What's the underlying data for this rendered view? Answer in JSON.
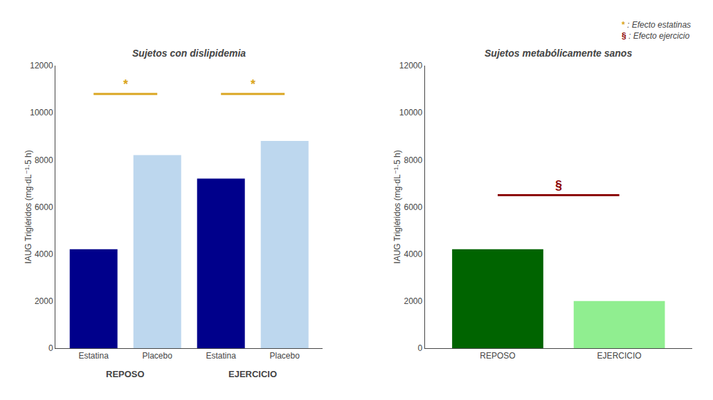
{
  "chart_data": [
    {
      "type": "bar",
      "title": "Sujetos con dislipidemia",
      "categories": [
        "Estatina",
        "Placebo",
        "Estatina",
        "Placebo"
      ],
      "groups": [
        "REPOSO",
        "REPOSO",
        "EJERCICIO",
        "EJERCICIO"
      ],
      "values": [
        4200,
        8200,
        7200,
        8800
      ],
      "colors": [
        "#00008B",
        "#BDD7EE",
        "#00008B",
        "#BDD7EE"
      ],
      "ylabel": "IAUG Trigléridos (mg·dL⁻¹·5 h)",
      "ylim": [
        0,
        12000
      ],
      "yticks": [
        0,
        2000,
        4000,
        6000,
        8000,
        10000,
        12000
      ],
      "grid": false,
      "annotations": [
        {
          "text": "*",
          "y": 10800,
          "between": [
            0,
            1
          ],
          "color": "#DAA520"
        },
        {
          "text": "*",
          "y": 10800,
          "between": [
            2,
            3
          ],
          "color": "#DAA520"
        }
      ]
    },
    {
      "type": "bar",
      "title": "Sujetos metabólicamente sanos",
      "categories": [
        "REPOSO",
        "EJERCICIO"
      ],
      "values": [
        4200,
        2000
      ],
      "colors": [
        "#006400",
        "#90EE90"
      ],
      "ylabel": "IAUG Trigléridos (mg·dL⁻¹·5 h)",
      "ylim": [
        0,
        12000
      ],
      "yticks": [
        0,
        2000,
        4000,
        6000,
        8000,
        10000,
        12000
      ],
      "grid": false,
      "annotations": [
        {
          "text": "§",
          "y": 6500,
          "between": [
            0,
            1
          ],
          "color": "#8B0000"
        }
      ]
    }
  ],
  "notes": [
    {
      "symbol": "*",
      "text": ": Efecto estatinas",
      "color": "#DAA520"
    },
    {
      "symbol": "§",
      "text": ": Efecto ejercicio",
      "color": "#8B0000"
    }
  ]
}
